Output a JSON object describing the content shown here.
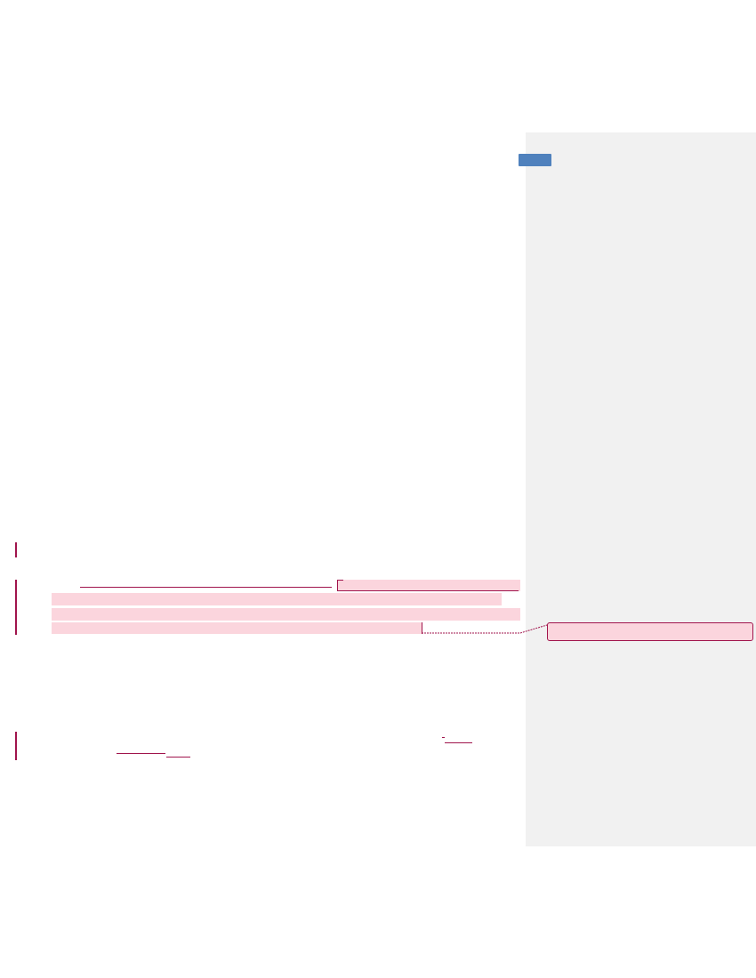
{
  "document": {
    "page": {
      "background_color": "#ffffff"
    },
    "markup_pane": {
      "background_color": "#f1f1f1",
      "tab_color": "#4f81bd"
    },
    "revisions": {
      "change_bar_color": "#a0144c",
      "highlight_color": "#fbd5dd"
    },
    "comment_balloon": {
      "text": ""
    }
  }
}
